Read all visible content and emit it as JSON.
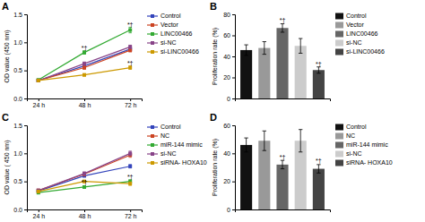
{
  "chart_data": [
    {
      "type": "line",
      "title": "A",
      "x": [
        24,
        48,
        72
      ],
      "xlim": [
        18,
        78
      ],
      "xticks": [
        {
          "value": 24,
          "label": "24 h"
        },
        {
          "value": 48,
          "label": "48 h"
        },
        {
          "value": 72,
          "label": "72 h"
        }
      ],
      "ylim": [
        0.0,
        1.5
      ],
      "yticks": [
        {
          "value": 0,
          "label": "0.0"
        },
        0.5,
        {
          "value": 1,
          "label": "1.0"
        },
        1.5
      ],
      "ylabel": "OD value (450 nm)",
      "grid": false,
      "legend": "right",
      "series": [
        {
          "name": "Control",
          "color": "#3344bb",
          "marker": "square",
          "values": [
            0.32,
            0.58,
            0.88
          ],
          "errors": [
            0.01,
            0.02,
            0.03
          ]
        },
        {
          "name": "Vector",
          "color": "#cc4422",
          "marker": "square",
          "values": [
            0.32,
            0.55,
            0.86
          ],
          "errors": [
            0.01,
            0.03,
            0.03
          ]
        },
        {
          "name": "LINC00466",
          "color": "#33aa33",
          "marker": "square",
          "values": [
            0.33,
            0.82,
            1.22
          ],
          "errors": [
            0.01,
            0.03,
            0.05
          ]
        },
        {
          "name": "si-NC",
          "color": "#884488",
          "marker": "square",
          "values": [
            0.32,
            0.62,
            0.92
          ],
          "errors": [
            0.01,
            0.03,
            0.03
          ]
        },
        {
          "name": "si-LINC00466",
          "color": "#cc9900",
          "marker": "square",
          "values": [
            0.32,
            0.42,
            0.55
          ],
          "errors": [
            0.01,
            0.02,
            0.03
          ]
        }
      ],
      "annotations": [
        {
          "x": 48,
          "y": 0.86,
          "text": "*†"
        },
        {
          "x": 72,
          "y": 1.28,
          "text": "*†"
        },
        {
          "x": 72,
          "y": 0.59,
          "text": "*†"
        }
      ]
    },
    {
      "type": "bar",
      "title": "B",
      "categories": [
        "Control",
        "Vector",
        "LINC00466",
        "si-NC",
        "si-LINC00466"
      ],
      "values": [
        46,
        48,
        67,
        50,
        27
      ],
      "errors": [
        5,
        6,
        4,
        7,
        3
      ],
      "colors": [
        "#111111",
        "#999999",
        "#666666",
        "#cccccc",
        "#444444"
      ],
      "ylabel": "Proliferation rate (%)",
      "ylim": [
        0,
        80
      ],
      "yticks": [
        0,
        20,
        40,
        60,
        80
      ],
      "tick_labels": "y",
      "grid": false,
      "legend": "right",
      "annotations": [
        {
          "x": "LINC00466",
          "y": 72,
          "text": "*†"
        },
        {
          "x": "si-LINC00466",
          "y": 31,
          "text": "*†"
        }
      ]
    },
    {
      "type": "line",
      "title": "C",
      "x": [
        24,
        48,
        72
      ],
      "xlim": [
        18,
        78
      ],
      "xticks": [
        {
          "value": 24,
          "label": "24 h"
        },
        {
          "value": 48,
          "label": "48 h"
        },
        {
          "value": 72,
          "label": "72 h"
        }
      ],
      "ylim": [
        0.0,
        1.5
      ],
      "yticks": [
        {
          "value": 0,
          "label": "0.0"
        },
        0.5,
        {
          "value": 1,
          "label": "1.0"
        },
        1.5
      ],
      "ylabel": "OD value ( 450 nm)",
      "grid": false,
      "legend": "right",
      "series": [
        {
          "name": "Control",
          "color": "#3344bb",
          "marker": "square",
          "values": [
            0.33,
            0.6,
            0.77
          ],
          "errors": [
            0.01,
            0.02,
            0.03
          ]
        },
        {
          "name": "NC",
          "color": "#cc4422",
          "marker": "square",
          "values": [
            0.34,
            0.63,
            0.97
          ],
          "errors": [
            0.01,
            0.03,
            0.04
          ]
        },
        {
          "name": "miR-144 mimic",
          "color": "#33aa33",
          "marker": "square",
          "values": [
            0.3,
            0.4,
            0.5
          ],
          "errors": [
            0.01,
            0.02,
            0.03
          ]
        },
        {
          "name": "si-NC",
          "color": "#884488",
          "marker": "square",
          "values": [
            0.34,
            0.64,
            1.0
          ],
          "errors": [
            0.01,
            0.03,
            0.04
          ]
        },
        {
          "name": "siRNA- HOXA10",
          "color": "#cc9900",
          "marker": "square",
          "values": [
            0.32,
            0.5,
            0.46
          ],
          "errors": [
            0.01,
            0.02,
            0.03
          ]
        }
      ],
      "annotations": [
        {
          "x": 48,
          "y": 0.44,
          "text": "*†"
        },
        {
          "x": 72,
          "y": 0.54,
          "text": "*†"
        }
      ]
    },
    {
      "type": "bar",
      "title": "D",
      "categories": [
        "Control",
        "NC",
        "miR-144 mimic",
        "si-NC",
        "siRNA- HOXA10"
      ],
      "values": [
        46,
        49,
        32,
        49,
        29
      ],
      "errors": [
        5,
        7,
        3,
        8,
        3
      ],
      "colors": [
        "#111111",
        "#999999",
        "#666666",
        "#cccccc",
        "#444444"
      ],
      "ylabel": "Proliferation rate (%)",
      "ylim": [
        0,
        60
      ],
      "yticks": [
        0,
        20,
        40,
        60
      ],
      "tick_labels": "y",
      "grid": false,
      "legend": "right",
      "annotations": [
        {
          "x": "miR-144 mimic",
          "y": 36,
          "text": "*†"
        },
        {
          "x": "siRNA- HOXA10",
          "y": 33,
          "text": "*†"
        }
      ]
    }
  ]
}
